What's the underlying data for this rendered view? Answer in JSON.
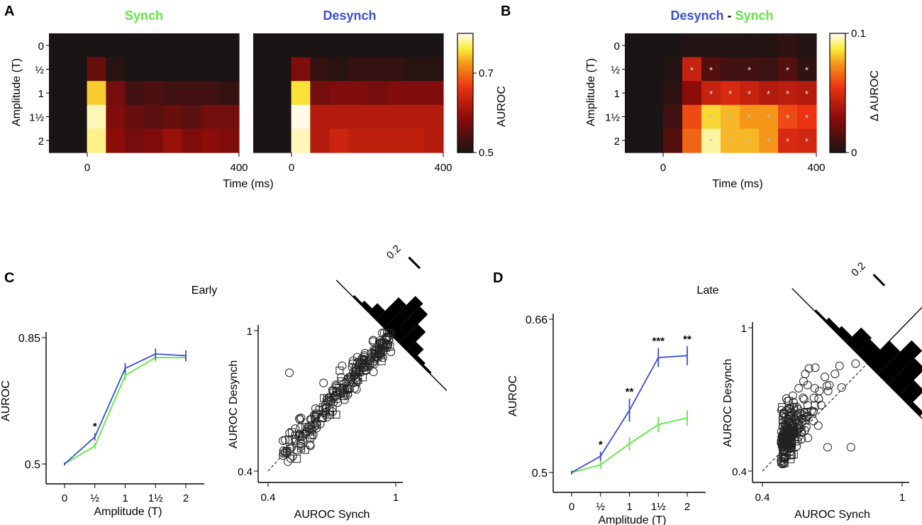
{
  "colors": {
    "synch": "#5fe841",
    "desynch": "#3a4fd6",
    "heat_low": "#1b1414",
    "heat_high": "#fffbe6",
    "black": "#000000"
  },
  "chart_data": [
    {
      "panel_letter": "A",
      "type": "heatmap",
      "title_left": "Synch",
      "title_right": "Desynch",
      "ylabel": "Amplitude (T)",
      "xlabel": "Time (ms)",
      "row_labels": [
        "0",
        "½",
        "1",
        "1½",
        "2"
      ],
      "x_tick_labels": [
        "0",
        "400",
        "0",
        "400"
      ],
      "colorbar": {
        "label": "AUROC",
        "ticks": [
          "0.5",
          "0.7"
        ],
        "range": [
          0.5,
          0.8
        ]
      },
      "grid_synch": [
        [
          0.5,
          0.5,
          0.5,
          0.5,
          0.5,
          0.5,
          0.5,
          0.5,
          0.5,
          0.5
        ],
        [
          0.5,
          0.5,
          0.56,
          0.51,
          0.5,
          0.5,
          0.5,
          0.5,
          0.5,
          0.5
        ],
        [
          0.5,
          0.5,
          0.75,
          0.57,
          0.53,
          0.54,
          0.53,
          0.53,
          0.53,
          0.52
        ],
        [
          0.5,
          0.5,
          0.79,
          0.58,
          0.56,
          0.55,
          0.56,
          0.55,
          0.57,
          0.57
        ],
        [
          0.5,
          0.5,
          0.78,
          0.59,
          0.57,
          0.58,
          0.6,
          0.58,
          0.59,
          0.58
        ]
      ],
      "grid_desynch": [
        [
          0.5,
          0.5,
          0.5,
          0.5,
          0.5,
          0.5,
          0.5,
          0.5,
          0.5,
          0.5
        ],
        [
          0.5,
          0.5,
          0.58,
          0.52,
          0.51,
          0.52,
          0.52,
          0.52,
          0.51,
          0.51
        ],
        [
          0.5,
          0.5,
          0.76,
          0.57,
          0.58,
          0.58,
          0.57,
          0.58,
          0.58,
          0.58
        ],
        [
          0.5,
          0.5,
          0.8,
          0.62,
          0.62,
          0.62,
          0.62,
          0.62,
          0.62,
          0.62
        ],
        [
          0.5,
          0.5,
          0.79,
          0.62,
          0.64,
          0.63,
          0.63,
          0.63,
          0.63,
          0.62
        ]
      ]
    },
    {
      "panel_letter": "B",
      "type": "heatmap",
      "title_part1": "Desynch",
      "title_sep": " - ",
      "title_part2": "Synch",
      "ylabel": "Amplitude (T)",
      "xlabel": "Time (ms)",
      "row_labels": [
        "0",
        "½",
        "1",
        "1½",
        "2"
      ],
      "x_tick_labels": [
        "0",
        "400"
      ],
      "colorbar": {
        "label": "Δ AUROC",
        "ticks": [
          "0",
          "0.1"
        ],
        "range": [
          0,
          0.1
        ]
      },
      "grid": [
        [
          0.0,
          0.0,
          0.0,
          0.002,
          0.002,
          0.002,
          0.002,
          0.002,
          0.005,
          0.002
        ],
        [
          0.0,
          0.0,
          0.002,
          0.045,
          0.015,
          0.01,
          0.01,
          0.008,
          0.015,
          0.005
        ],
        [
          0.0,
          0.0,
          0.005,
          0.03,
          0.045,
          0.05,
          0.045,
          0.04,
          0.042,
          0.04
        ],
        [
          0.0,
          0.0,
          0.01,
          0.06,
          0.085,
          0.08,
          0.075,
          0.075,
          0.06,
          0.055
        ],
        [
          0.0,
          0.0,
          0.015,
          0.065,
          0.095,
          0.08,
          0.08,
          0.075,
          0.05,
          0.048
        ]
      ],
      "significance_marker": "*",
      "significant_cells": [
        [
          1,
          3
        ],
        [
          1,
          4
        ],
        [
          1,
          6
        ],
        [
          1,
          8
        ],
        [
          1,
          9
        ],
        [
          2,
          4
        ],
        [
          2,
          5
        ],
        [
          2,
          6
        ],
        [
          2,
          7
        ],
        [
          2,
          8
        ],
        [
          2,
          9
        ],
        [
          3,
          4
        ],
        [
          3,
          5
        ],
        [
          3,
          6
        ],
        [
          3,
          7
        ],
        [
          3,
          8
        ],
        [
          3,
          9
        ],
        [
          4,
          4
        ],
        [
          4,
          5
        ],
        [
          4,
          6
        ],
        [
          4,
          7
        ],
        [
          4,
          8
        ],
        [
          4,
          9
        ]
      ]
    },
    {
      "panel_letter": "C",
      "type": "line",
      "panel_title": "Early",
      "xlabel": "Amplitude (T)",
      "ylabel": "AUROC",
      "categories": [
        "0",
        "½",
        "1",
        "1½",
        "2"
      ],
      "ylim": [
        0.5,
        0.85
      ],
      "y_tick_labels": [
        "0.5",
        "0.85"
      ],
      "series": [
        {
          "name": "Desynch",
          "values": [
            0.5,
            0.575,
            0.765,
            0.805,
            0.8
          ],
          "errors": [
            0.004,
            0.01,
            0.015,
            0.015,
            0.015
          ]
        },
        {
          "name": "Synch",
          "values": [
            0.5,
            0.55,
            0.745,
            0.795,
            0.795
          ],
          "errors": [
            0.004,
            0.008,
            0.012,
            0.012,
            0.012
          ]
        }
      ],
      "annotations": [
        {
          "category_index": 1,
          "text": "*"
        }
      ]
    },
    {
      "panel_letter": "C",
      "type": "scatter",
      "xlabel": "AUROC Synch",
      "ylabel": "AUROC Desynch",
      "xlim": [
        0.4,
        1.0
      ],
      "ylim": [
        0.4,
        1.0
      ],
      "x_tick_labels": [
        "0.4",
        "1"
      ],
      "y_tick_labels": [
        "0.4",
        "1"
      ],
      "histogram_scale_label": "0.2",
      "histogram_bins": [
        0.02,
        0.05,
        0.12,
        0.3,
        0.42,
        0.38,
        0.25,
        0.12,
        0.04,
        0.02
      ],
      "cluster": {
        "x_range": [
          0.47,
          0.98
        ],
        "slope": 1.0,
        "noise": 0.035,
        "n_circles": 170,
        "n_squares": 85,
        "outliers": [
          [
            0.47,
            0.53
          ],
          [
            0.5,
            0.82
          ],
          [
            0.55,
            0.62
          ]
        ]
      }
    },
    {
      "panel_letter": "D",
      "type": "line",
      "panel_title": "Late",
      "xlabel": "Amplitude (T)",
      "ylabel": "AUROC",
      "categories": [
        "0",
        "½",
        "1",
        "1½",
        "2"
      ],
      "ylim": [
        0.5,
        0.66
      ],
      "y_tick_labels": [
        "0.5",
        "0.66"
      ],
      "series": [
        {
          "name": "Desynch",
          "values": [
            0.5,
            0.517,
            0.565,
            0.62,
            0.622
          ],
          "errors": [
            0.002,
            0.005,
            0.012,
            0.01,
            0.01
          ]
        },
        {
          "name": "Synch",
          "values": [
            0.5,
            0.508,
            0.53,
            0.55,
            0.557
          ],
          "errors": [
            0.002,
            0.004,
            0.007,
            0.008,
            0.008
          ]
        }
      ],
      "annotations": [
        {
          "category_index": 1,
          "text": "*"
        },
        {
          "category_index": 2,
          "text": "**"
        },
        {
          "category_index": 3,
          "text": "***"
        },
        {
          "category_index": 4,
          "text": "**"
        }
      ]
    },
    {
      "panel_letter": "D",
      "type": "scatter",
      "xlabel": "AUROC Synch",
      "ylabel": "AUROC Desynch",
      "xlim": [
        0.4,
        1.0
      ],
      "ylim": [
        0.4,
        1.0
      ],
      "x_tick_labels": [
        "0.4",
        "1"
      ],
      "y_tick_labels": [
        "0.4",
        "1"
      ],
      "histogram_scale_label": "0.2",
      "histogram_bins": [
        0.02,
        0.05,
        0.08,
        0.2,
        0.18,
        0.3,
        0.45,
        0.35,
        0.2,
        0.05
      ],
      "cluster": {
        "x_center": 0.5,
        "y_center": 0.52,
        "n_circles": 200,
        "n_squares": 35,
        "outliers": [
          [
            0.68,
            0.5
          ],
          [
            0.78,
            0.5
          ],
          [
            0.8,
            0.85
          ],
          [
            0.74,
            0.75
          ],
          [
            0.6,
            0.83
          ]
        ]
      }
    }
  ]
}
